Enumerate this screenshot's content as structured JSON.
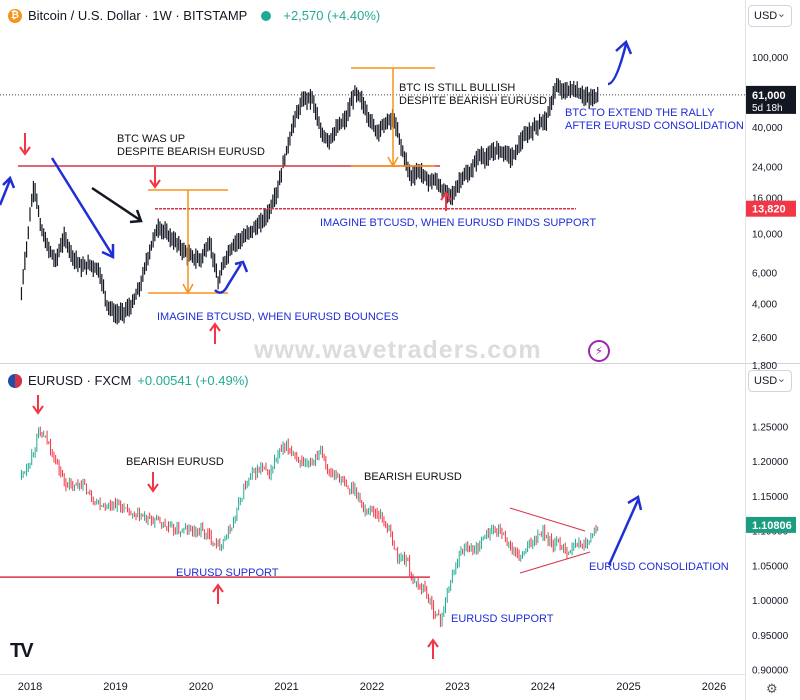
{
  "header_top": {
    "title": "Bitcoin / U.S. Dollar · 1W · BITSTAMP",
    "change": "+2,570 (+4.40%)",
    "currency": "USD"
  },
  "header_bottom": {
    "title": "EURUSD · FXCM",
    "change": "+0.00541 (+0.49%)",
    "currency": "USD"
  },
  "watermark": "www.wavetraders.com",
  "logo": "TV",
  "icons": {
    "coin": "bitcoin-icon",
    "flag": "eu-us-flag-icon",
    "status": "market-open-icon",
    "lightning": "lightning-icon",
    "settings": "gear-icon"
  },
  "annotations": {
    "btc_up": [
      "BTC WAS UP",
      "DESPITE BEARISH EURUSD"
    ],
    "btc_still": [
      "BTC IS STILL BULLISH",
      "DESPITE BEARISH EURUSD"
    ],
    "btc_extend": [
      "BTC TO EXTEND THE RALLY",
      "AFTER EURUSD CONSOLIDATION"
    ],
    "imagine_support": "IMAGINE BTCUSD, WHEN EURUSD FINDS SUPPORT",
    "imagine_bounce": "IMAGINE BTCUSD, WHEN EURUSD BOUNCES",
    "bearish_1": "BEARISH EURUSD",
    "bearish_2": "BEARISH EURUSD",
    "support_1": "EURUSD SUPPORT",
    "support_2": "EURUSD SUPPORT",
    "consolidation": "EURUSD CONSOLIDATION"
  },
  "colors": {
    "up": "#22ab94",
    "down": "#f23645",
    "btc": "#131722",
    "annot_blue": "#1f2ed6",
    "red_line": "#d6334a",
    "orange": "#f7931a"
  },
  "chart_data": [
    {
      "type": "line",
      "title": "Bitcoin / U.S. Dollar · 1W · BITSTAMP",
      "scale": "log",
      "ylim": [
        1500,
        150000
      ],
      "y_ticks": [
        1800,
        2600,
        4000,
        6000,
        10000,
        16000,
        24000,
        40000,
        100000
      ],
      "y_tick_labels": [
        "1,800",
        "2,600",
        "4,000",
        "6,000",
        "10,000",
        "16,000",
        "24,000",
        "40,000",
        "100,000"
      ],
      "last_price": 61000,
      "last_price_label": "61,000",
      "countdown": "5d 18h",
      "level": 13820,
      "level_label": "13,820",
      "x": [
        2017.9,
        2017.97,
        2018.05,
        2018.12,
        2018.2,
        2018.3,
        2018.4,
        2018.5,
        2018.6,
        2018.7,
        2018.8,
        2018.9,
        2019.0,
        2019.1,
        2019.2,
        2019.3,
        2019.4,
        2019.5,
        2019.6,
        2019.7,
        2019.8,
        2019.9,
        2020.0,
        2020.1,
        2020.2,
        2020.3,
        2020.4,
        2020.5,
        2020.6,
        2020.7,
        2020.8,
        2020.9,
        2021.0,
        2021.1,
        2021.2,
        2021.3,
        2021.4,
        2021.5,
        2021.6,
        2021.7,
        2021.8,
        2021.87,
        2021.95,
        2022.05,
        2022.15,
        2022.25,
        2022.35,
        2022.45,
        2022.55,
        2022.65,
        2022.75,
        2022.85,
        2022.95,
        2023.05,
        2023.15,
        2023.25,
        2023.35,
        2023.45,
        2023.55,
        2023.65,
        2023.75,
        2023.85,
        2023.95,
        2024.05,
        2024.15,
        2024.25,
        2024.35,
        2024.45,
        2024.55,
        2024.65
      ],
      "values": [
        4500,
        9000,
        19000,
        11000,
        8500,
        7000,
        9500,
        7500,
        6500,
        6700,
        6300,
        4000,
        3500,
        3600,
        4000,
        5200,
        8000,
        11000,
        10000,
        9000,
        8000,
        7300,
        7200,
        9000,
        5200,
        7500,
        9000,
        9500,
        10500,
        11500,
        13500,
        18000,
        29000,
        45000,
        58000,
        59000,
        37000,
        34000,
        40000,
        45000,
        63000,
        58000,
        47000,
        38000,
        42000,
        45000,
        30000,
        21000,
        23000,
        20000,
        20000,
        17000,
        16500,
        21000,
        22000,
        28000,
        27000,
        30000,
        29000,
        27000,
        34000,
        38000,
        42000,
        45000,
        68000,
        64000,
        66000,
        62000,
        58000,
        61000
      ]
    },
    {
      "type": "line",
      "title": "EURUSD · FXCM",
      "ylim": [
        0.9,
        1.3
      ],
      "y_ticks": [
        0.9,
        0.95,
        1.0,
        1.05,
        1.1,
        1.15,
        1.2,
        1.25
      ],
      "y_tick_labels": [
        "0.90000",
        "0.95000",
        "1.00000",
        "1.05000",
        "1.10000",
        "1.15000",
        "1.20000",
        "1.25000"
      ],
      "last_price": 1.10806,
      "last_price_label": "1.10806",
      "support_level": 1.033,
      "x_ticks": [
        2018,
        2019,
        2020,
        2021,
        2022,
        2023,
        2024,
        2025,
        2026
      ],
      "x": [
        2017.9,
        2018.0,
        2018.1,
        2018.2,
        2018.3,
        2018.4,
        2018.5,
        2018.6,
        2018.7,
        2018.8,
        2018.9,
        2019.0,
        2019.1,
        2019.2,
        2019.3,
        2019.4,
        2019.5,
        2019.6,
        2019.7,
        2019.8,
        2019.9,
        2020.0,
        2020.1,
        2020.2,
        2020.3,
        2020.4,
        2020.5,
        2020.6,
        2020.7,
        2020.8,
        2020.9,
        2021.0,
        2021.1,
        2021.2,
        2021.3,
        2021.4,
        2021.5,
        2021.6,
        2021.7,
        2021.8,
        2021.9,
        2022.0,
        2022.1,
        2022.2,
        2022.3,
        2022.4,
        2022.5,
        2022.6,
        2022.7,
        2022.8,
        2022.9,
        2023.0,
        2023.1,
        2023.2,
        2023.3,
        2023.4,
        2023.5,
        2023.6,
        2023.7,
        2023.8,
        2023.9,
        2024.0,
        2024.1,
        2024.2,
        2024.3,
        2024.4,
        2024.5,
        2024.65
      ],
      "values": [
        1.18,
        1.2,
        1.24,
        1.23,
        1.2,
        1.17,
        1.16,
        1.17,
        1.15,
        1.14,
        1.135,
        1.14,
        1.13,
        1.12,
        1.12,
        1.115,
        1.115,
        1.105,
        1.1,
        1.1,
        1.1,
        1.1,
        1.09,
        1.08,
        1.09,
        1.12,
        1.16,
        1.18,
        1.19,
        1.18,
        1.21,
        1.22,
        1.21,
        1.19,
        1.2,
        1.22,
        1.18,
        1.18,
        1.16,
        1.16,
        1.13,
        1.13,
        1.12,
        1.1,
        1.06,
        1.06,
        1.02,
        1.02,
        0.99,
        0.97,
        1.02,
        1.06,
        1.08,
        1.07,
        1.09,
        1.1,
        1.1,
        1.08,
        1.06,
        1.07,
        1.09,
        1.1,
        1.08,
        1.08,
        1.07,
        1.08,
        1.08,
        1.108
      ]
    }
  ]
}
